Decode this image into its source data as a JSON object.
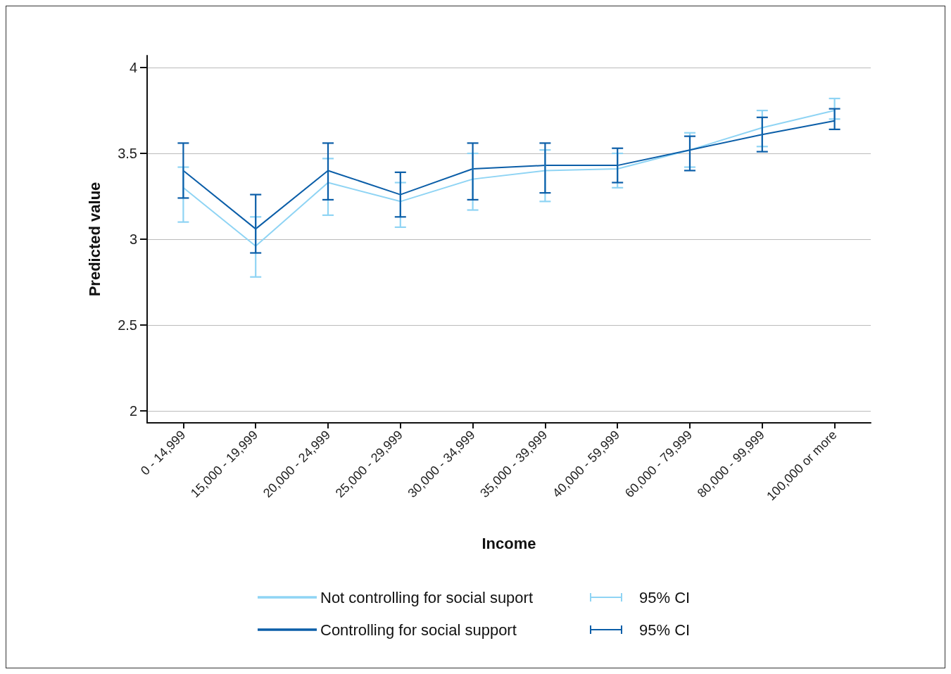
{
  "chart_data": {
    "type": "line",
    "xlabel": "Income",
    "ylabel": "Predicted value",
    "categories": [
      "0 - 14,999",
      "15,000 - 19,999",
      "20,000 - 24,999",
      "25,000 - 29,999",
      "30,000 - 34,999",
      "35,000 - 39,999",
      "40,000 - 59,999",
      "60,000 - 79,999",
      "80,000 - 99,999",
      "100,000 or more"
    ],
    "series": [
      {
        "name": "Not controlling for social suport",
        "color": "#8fd4f4",
        "values": [
          3.3,
          2.96,
          3.33,
          3.22,
          3.35,
          3.4,
          3.41,
          3.52,
          3.65,
          3.75
        ],
        "errors": [
          [
            3.1,
            3.42
          ],
          [
            2.78,
            3.13
          ],
          [
            3.14,
            3.47
          ],
          [
            3.07,
            3.33
          ],
          [
            3.17,
            3.5
          ],
          [
            3.22,
            3.52
          ],
          [
            3.3,
            3.5
          ],
          [
            3.42,
            3.62
          ],
          [
            3.54,
            3.75
          ],
          [
            3.7,
            3.82
          ]
        ]
      },
      {
        "name": "Controlling for social support",
        "color": "#0b5ea8",
        "values": [
          3.4,
          3.06,
          3.4,
          3.26,
          3.41,
          3.43,
          3.43,
          3.52,
          3.61,
          3.69
        ],
        "errors": [
          [
            3.24,
            3.56
          ],
          [
            2.92,
            3.26
          ],
          [
            3.23,
            3.56
          ],
          [
            3.13,
            3.39
          ],
          [
            3.23,
            3.56
          ],
          [
            3.27,
            3.56
          ],
          [
            3.33,
            3.53
          ],
          [
            3.4,
            3.6
          ],
          [
            3.51,
            3.71
          ],
          [
            3.64,
            3.76
          ]
        ]
      }
    ],
    "annotations": [
      "95% CI",
      "95% CI"
    ],
    "ylim": [
      1.93,
      4.07
    ],
    "yticks": [
      2,
      2.5,
      3,
      3.5,
      4
    ],
    "grid": "y",
    "legend": "bottom",
    "marker": "none",
    "line_style": "solid"
  }
}
